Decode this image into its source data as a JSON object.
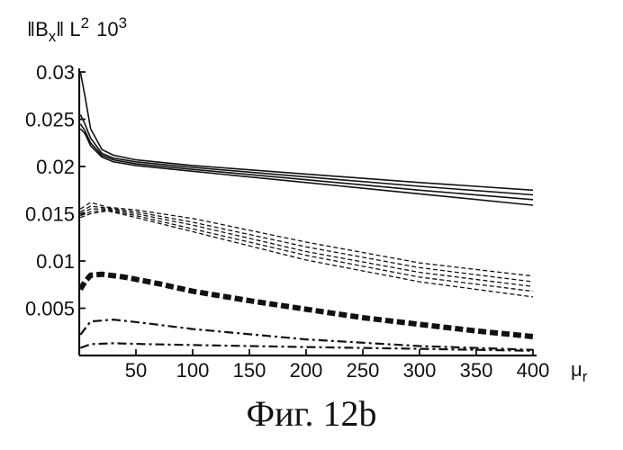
{
  "chart_data": {
    "type": "line",
    "title": "",
    "ylabel": {
      "norm": "‖B",
      "sub": "x",
      "norm_close": "‖",
      "space": "L",
      "space_exp": "2",
      "scale": "10",
      "scale_exp": "3"
    },
    "xlabel": {
      "main": "μ",
      "sub": "r"
    },
    "xlim": [
      0,
      400
    ],
    "ylim": [
      0,
      0.03
    ],
    "x_ticks": [
      50,
      100,
      150,
      200,
      250,
      300,
      350,
      400
    ],
    "y_ticks": [
      0.005,
      0.01,
      0.015,
      0.02,
      0.025,
      0.03
    ],
    "y_tick_labels": [
      "0.005",
      "0.01",
      "0.015",
      "0.02",
      "0.025",
      "0.03"
    ],
    "groups": [
      {
        "style": "solid",
        "series": [
          {
            "name": "solid-1",
            "x": [
              1,
              5,
              10,
              20,
              30,
              50,
              100,
              200,
              300,
              400
            ],
            "y": [
              0.03,
              0.0275,
              0.024,
              0.0218,
              0.0212,
              0.0207,
              0.0201,
              0.0192,
              0.0183,
              0.0175
            ]
          },
          {
            "name": "solid-2",
            "x": [
              1,
              5,
              10,
              20,
              30,
              50,
              100,
              200,
              300,
              400
            ],
            "y": [
              0.0255,
              0.0245,
              0.023,
              0.0214,
              0.0209,
              0.0205,
              0.0199,
              0.0189,
              0.0179,
              0.017
            ]
          },
          {
            "name": "solid-3",
            "x": [
              1,
              5,
              10,
              20,
              30,
              50,
              100,
              200,
              300,
              400
            ],
            "y": [
              0.0245,
              0.0238,
              0.0225,
              0.0212,
              0.0207,
              0.0203,
              0.0197,
              0.0186,
              0.0175,
              0.0165
            ]
          },
          {
            "name": "solid-4",
            "x": [
              1,
              5,
              10,
              20,
              30,
              50,
              100,
              200,
              300,
              400
            ],
            "y": [
              0.024,
              0.0235,
              0.0222,
              0.021,
              0.0205,
              0.0201,
              0.0195,
              0.0183,
              0.0171,
              0.0159
            ]
          }
        ]
      },
      {
        "style": "dashed",
        "series": [
          {
            "name": "dashed-1",
            "x": [
              1,
              10,
              25,
              50,
              100,
              200,
              300,
              400
            ],
            "y": [
              0.0155,
              0.0162,
              0.0157,
              0.0154,
              0.0145,
              0.012,
              0.0098,
              0.0084
            ]
          },
          {
            "name": "dashed-2",
            "x": [
              1,
              10,
              25,
              50,
              100,
              200,
              300,
              400
            ],
            "y": [
              0.0152,
              0.0158,
              0.0156,
              0.0152,
              0.0141,
              0.0115,
              0.0093,
              0.0078
            ]
          },
          {
            "name": "dashed-3",
            "x": [
              1,
              10,
              25,
              50,
              100,
              200,
              300,
              400
            ],
            "y": [
              0.015,
              0.0155,
              0.0155,
              0.015,
              0.0138,
              0.011,
              0.0088,
              0.0073
            ]
          },
          {
            "name": "dashed-4",
            "x": [
              1,
              10,
              25,
              50,
              100,
              200,
              300,
              400
            ],
            "y": [
              0.0148,
              0.0152,
              0.0154,
              0.0148,
              0.0134,
              0.0106,
              0.0083,
              0.0068
            ]
          },
          {
            "name": "dashed-5",
            "x": [
              1,
              10,
              25,
              50,
              100,
              200,
              300,
              400
            ],
            "y": [
              0.0146,
              0.015,
              0.0153,
              0.0146,
              0.0131,
              0.0101,
              0.0078,
              0.0062
            ]
          }
        ]
      },
      {
        "style": "heavy-dashed",
        "series": [
          {
            "name": "heavy-dashed",
            "x": [
              1,
              5,
              10,
              20,
              40,
              70,
              100,
              150,
              200,
              250,
              300,
              350,
              400
            ],
            "y": [
              0.007,
              0.0078,
              0.0085,
              0.0086,
              0.0083,
              0.0076,
              0.0068,
              0.0058,
              0.0049,
              0.004,
              0.0033,
              0.0026,
              0.002
            ]
          }
        ]
      },
      {
        "style": "dash-dot",
        "series": [
          {
            "name": "dash-dot-1",
            "x": [
              1,
              10,
              30,
              60,
              100,
              200,
              300,
              400
            ],
            "y": [
              0.0022,
              0.0036,
              0.0038,
              0.0034,
              0.0028,
              0.0017,
              0.001,
              0.0006
            ]
          },
          {
            "name": "dash-dot-2",
            "x": [
              1,
              10,
              30,
              60,
              100,
              200,
              300,
              400
            ],
            "y": [
              0.0008,
              0.0012,
              0.0013,
              0.0012,
              0.0011,
              0.0009,
              0.0007,
              0.0005
            ]
          }
        ]
      }
    ]
  },
  "caption": "Фиг. 12b"
}
